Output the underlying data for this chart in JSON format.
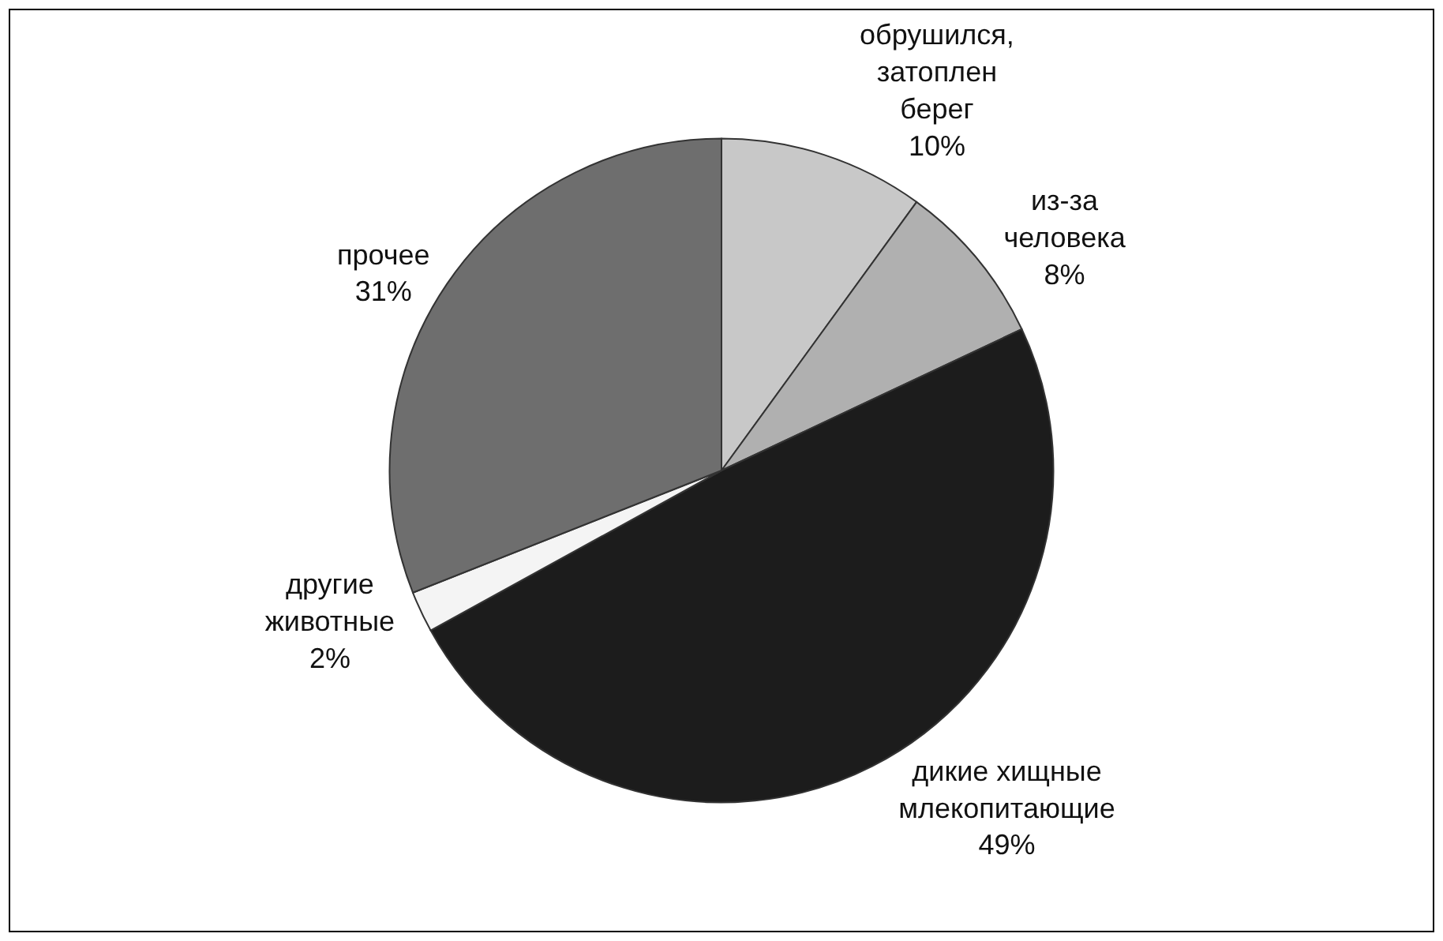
{
  "chart_data": {
    "type": "pie",
    "categories": [
      "обрушился, затоплен берег",
      "из-за человека",
      "дикие хищные млекопитающие",
      "другие животные",
      "прочее"
    ],
    "values": [
      10,
      8,
      49,
      2,
      31
    ],
    "colors": [
      "#c8c8c8",
      "#b0b0b0",
      "#1c1c1c",
      "#f4f4f4",
      "#6e6e6e"
    ],
    "value_labels": [
      "10%",
      "8%",
      "49%",
      "2%",
      "31%"
    ],
    "legend": false
  }
}
